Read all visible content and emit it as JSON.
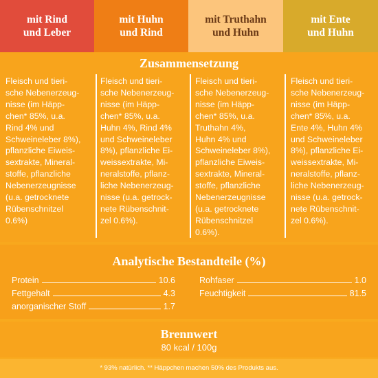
{
  "header": {
    "columns": [
      {
        "lines": [
          "mit Rind",
          "und Leber"
        ]
      },
      {
        "lines": [
          "mit Huhn",
          "und Rind"
        ]
      },
      {
        "lines": [
          "mit Truthahn",
          "und Huhn"
        ]
      },
      {
        "lines": [
          "mit Ente",
          "und Huhn"
        ]
      }
    ]
  },
  "composition": {
    "title": "Zusammensetzung",
    "columns": [
      {
        "lines": [
          "Fleisch und tieri-",
          "sche Nebenerzeug-",
          "nisse (im Häpp-",
          "chen* 85%, u.a.",
          "Rind 4% und",
          "Schweineleber 8%),",
          "pflanzliche Eiweis-",
          "sextrakte, Mineral-",
          "stoffe, pflanzliche",
          "Nebenerzeugnisse",
          "(u.a. getrocknete",
          "Rübenschnitzel",
          "0.6%)"
        ]
      },
      {
        "lines": [
          "Fleisch und tieri-",
          "sche Nebenerzeug-",
          "nisse (im Häpp-",
          "chen* 85%, u.a.",
          "Huhn 4%, Rind 4%",
          "und Schweineleber",
          "8%), pflanzliche Ei-",
          "weissextrakte, Mi-",
          "neralstoffe, pflanz-",
          "liche Nebenerzeug-",
          "nisse (u.a. getrock-",
          "nete Rübenschnit-",
          "zel 0.6%)."
        ]
      },
      {
        "lines": [
          "Fleisch und tieri-",
          "sche Nebenerzeug-",
          "nisse (im Häpp-",
          "chen* 85%, u.a.",
          "Truthahn 4%,",
          "Huhn 4% und",
          "Schweineleber 8%),",
          "pflanzliche Eiweis-",
          "sextrakte, Mineral-",
          "stoffe, pflanzliche",
          "Nebenerzeugnisse",
          "(u.a. getrocknete",
          "Rübenschnitzel",
          "0.6%)."
        ]
      },
      {
        "lines": [
          "Fleisch und tieri-",
          "sche Nebenerzeug-",
          "nisse (im Häpp-",
          "chen* 85%, u.a.",
          "Ente 4%, Huhn 4%",
          "und Schweineleber",
          "8%), pflanzliche Ei-",
          "weissextrakte, Mi-",
          "neralstoffe, pflanz-",
          "liche Nebenerzeug-",
          "nisse (u.a. getrock-",
          "nete Rübenschnit-",
          "zel 0.6%)."
        ]
      }
    ]
  },
  "analysis": {
    "title": "Analytische Bestandteile (%)",
    "left": [
      [
        "Protein",
        "10.6"
      ],
      [
        "Fettgehalt",
        "4.3"
      ],
      [
        "anorganischer Stoff",
        "1.7"
      ]
    ],
    "right": [
      [
        "Rohfaser",
        "1.0"
      ],
      [
        "Feuchtigkeit",
        "81.5"
      ]
    ]
  },
  "energy": {
    "title": "Brennwert",
    "value": "80 kcal / 100g"
  },
  "footnote": "* 93% natürlich. ** Häppchen machen 50% des Produkts aus."
}
